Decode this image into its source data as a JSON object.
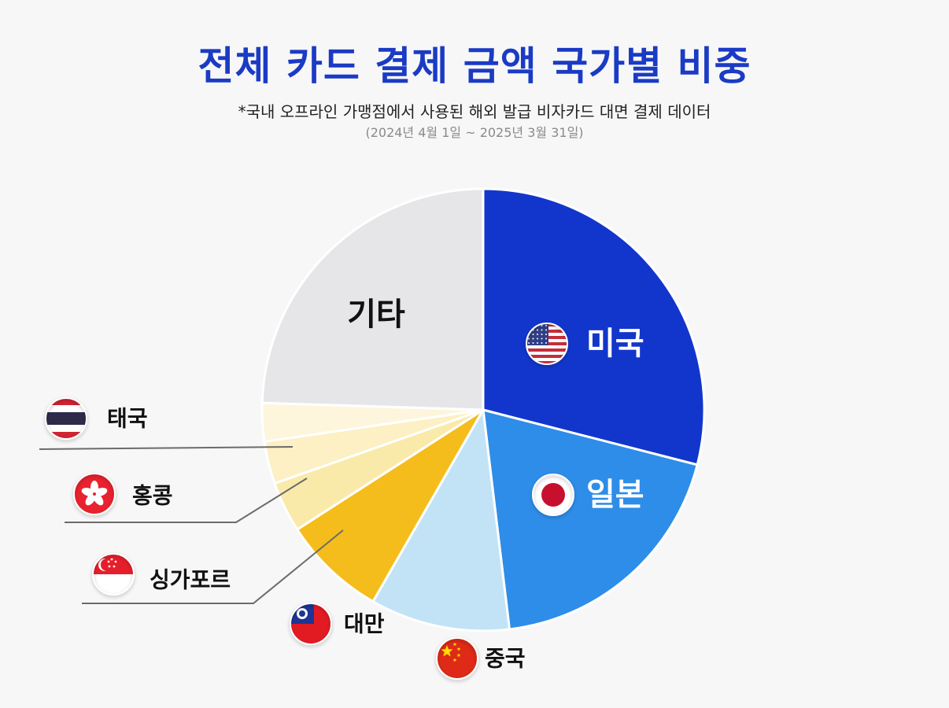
{
  "header": {
    "title": "전체 카드 결제 금액 국가별 비중",
    "subtitle": "*국내 오프라인 가맹점에서 사용된 해외 발급 비자카드 대면 결제 데이터",
    "period": "(2024년 4월 1일 ~ 2025년 3월 31일)"
  },
  "chart_data": {
    "type": "pie",
    "title": "전체 카드 결제 금액 국가별 비중",
    "slices": [
      {
        "label": "미국",
        "value": 0.29,
        "color": "#1236cc",
        "label_color": "#ffffff",
        "flag": "us-flag-icon"
      },
      {
        "label": "일본",
        "value": 0.191,
        "color": "#2e8de8",
        "label_color": "#ffffff",
        "flag": "japan-flag-icon"
      },
      {
        "label": "중국",
        "value": 0.102,
        "color": "#c2e3f6",
        "label_color": "#111111",
        "flag": "china-flag-icon"
      },
      {
        "label": "대만",
        "value": 0.076,
        "color": "#f5bd1b",
        "label_color": "#111111",
        "flag": "taiwan-flag-icon"
      },
      {
        "label": "싱가포르",
        "value": 0.037,
        "color": "#faeaaa",
        "label_color": "#111111",
        "flag": "singapore-flag-icon"
      },
      {
        "label": "홍콩",
        "value": 0.031,
        "color": "#fcf0c4",
        "label_color": "#111111",
        "flag": "hongkong-flag-icon"
      },
      {
        "label": "태국",
        "value": 0.028,
        "color": "#fdf5dc",
        "label_color": "#111111",
        "flag": "thailand-flag-icon"
      },
      {
        "label": "기타",
        "value": 0.245,
        "color": "#e6e6e9",
        "label_color": "#111111",
        "flag": ""
      }
    ]
  }
}
